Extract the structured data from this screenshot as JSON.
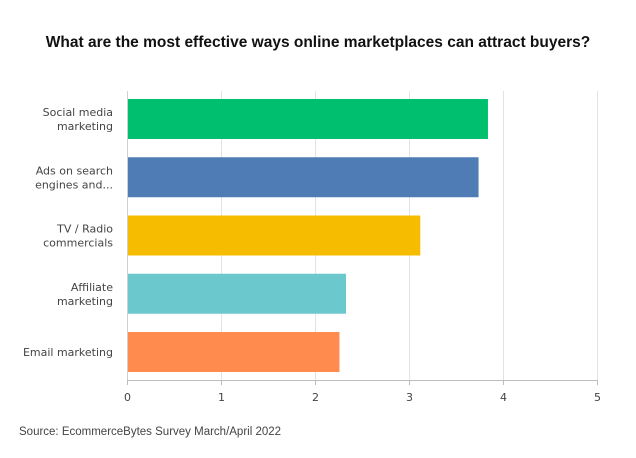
{
  "chart_data": {
    "type": "bar",
    "orientation": "horizontal",
    "title": "What are the most effective ways online marketplaces can attract buyers?",
    "categories": [
      [
        "Social media",
        "marketing"
      ],
      [
        "Ads on search",
        "engines and..."
      ],
      [
        "TV / Radio",
        "commercials"
      ],
      [
        "Affiliate",
        "marketing"
      ],
      [
        "Email marketing"
      ]
    ],
    "values": [
      3.84,
      3.74,
      3.12,
      2.33,
      2.26
    ],
    "colors": [
      "#00bf6f",
      "#507cb6",
      "#f6bc00",
      "#6bc8cd",
      "#ff8b4f"
    ],
    "xlim": [
      0,
      5
    ],
    "xticks": [
      "0",
      "1",
      "2",
      "3",
      "4",
      "5"
    ],
    "grid": true,
    "legend": "none"
  },
  "source": "Source: EcommerceBytes Survey March/April 2022"
}
